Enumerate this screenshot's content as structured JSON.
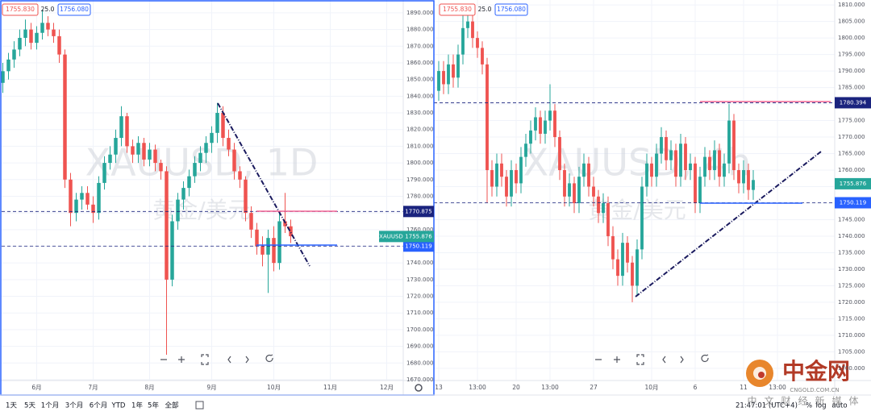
{
  "chart_data": [
    {
      "type": "candlestick",
      "watermark": "XAUUSD, 1D",
      "watermark_sub": "黄金/美元",
      "up_color": "#26a69a",
      "down_color": "#ef5350",
      "grid": true,
      "ylim": [
        1669.5,
        1897.7
      ],
      "yticks": [
        {
          "value": 1890,
          "label": "1890.000"
        },
        {
          "value": 1880,
          "label": "1880.000"
        },
        {
          "value": 1870,
          "label": "1870.000"
        },
        {
          "value": 1860,
          "label": "1860.000"
        },
        {
          "value": 1850,
          "label": "1850.000"
        },
        {
          "value": 1840,
          "label": "1840.000"
        },
        {
          "value": 1830,
          "label": "1830.000"
        },
        {
          "value": 1820,
          "label": "1820.000"
        },
        {
          "value": 1810,
          "label": "1810.000"
        },
        {
          "value": 1800,
          "label": "1800.000"
        },
        {
          "value": 1790,
          "label": "1790.000"
        },
        {
          "value": 1780,
          "label": "1780.000"
        },
        {
          "value": 1770,
          "label": "1770.000"
        },
        {
          "value": 1760,
          "label": "1760.000"
        },
        {
          "value": 1750,
          "label": "1750.000"
        },
        {
          "value": 1740,
          "label": "1740.000"
        },
        {
          "value": 1730,
          "label": "1730.000"
        },
        {
          "value": 1720,
          "label": "1720.000"
        },
        {
          "value": 1710,
          "label": "1710.000"
        },
        {
          "value": 1700,
          "label": "1700.000"
        },
        {
          "value": 1690,
          "label": "1690.000"
        },
        {
          "value": 1680,
          "label": "1680.000"
        },
        {
          "value": 1670,
          "label": "1670.000"
        }
      ],
      "categories": [
        null,
        null,
        null,
        null,
        null,
        null,
        "6月",
        null,
        null,
        null,
        null,
        null,
        null,
        null,
        null,
        null,
        "7月",
        null,
        null,
        null,
        null,
        null,
        null,
        null,
        null,
        null,
        "8月",
        null,
        null,
        null,
        null,
        null,
        null,
        null,
        null,
        null,
        null,
        "9月",
        null,
        null,
        null,
        null,
        null,
        null,
        null,
        null,
        null,
        null,
        "10月",
        null,
        null,
        null,
        null,
        null,
        null,
        null,
        null,
        null,
        "11月",
        null,
        null,
        null,
        null,
        null,
        null,
        null,
        null,
        null,
        "12月",
        null,
        null
      ],
      "open": [
        1848,
        1855,
        1862,
        1868,
        1875,
        1880,
        1872,
        1878,
        1884,
        1880,
        1876,
        1865,
        1790,
        1770,
        1778,
        1782,
        1775,
        1770,
        1788,
        1800,
        1805,
        1815,
        1828,
        1810,
        1805,
        1812,
        1802,
        1808,
        1800,
        1795,
        1730,
        1765,
        1778,
        1785,
        1792,
        1800,
        1806,
        1812,
        1818,
        1830,
        1815,
        1808,
        1795,
        1790,
        1770,
        1760,
        1750,
        1745,
        1755,
        1740,
        1765,
        1762,
        null,
        null,
        null,
        null,
        null,
        null,
        null,
        null,
        null,
        null,
        null,
        null,
        null,
        null,
        null,
        null,
        null,
        null,
        null
      ],
      "high": [
        1860,
        1866,
        1873,
        1880,
        1886,
        1884,
        1882,
        1892,
        1888,
        1884,
        1880,
        1868,
        1794,
        1782,
        1786,
        1786,
        1780,
        1792,
        1804,
        1810,
        1820,
        1834,
        1830,
        1814,
        1816,
        1815,
        1812,
        1811,
        1802,
        1798,
        1769,
        1782,
        1789,
        1796,
        1804,
        1810,
        1816,
        1822,
        1836,
        1834,
        1820,
        1812,
        1798,
        1792,
        1774,
        1764,
        1756,
        1760,
        1762,
        1770,
        1782,
        1766,
        null,
        null,
        null,
        null,
        null,
        null,
        null,
        null,
        null,
        null,
        null,
        null,
        null,
        null,
        null,
        null,
        null,
        null,
        null
      ],
      "low": [
        1842,
        1850,
        1857,
        1864,
        1870,
        1868,
        1868,
        1874,
        1876,
        1872,
        1860,
        1785,
        1762,
        1765,
        1772,
        1772,
        1764,
        1766,
        1784,
        1796,
        1800,
        1810,
        1806,
        1800,
        1800,
        1798,
        1798,
        1795,
        1790,
        1685,
        1726,
        1760,
        1772,
        1780,
        1788,
        1795,
        1800,
        1806,
        1812,
        1810,
        1804,
        1790,
        1785,
        1765,
        1755,
        1745,
        1738,
        1722,
        1735,
        1736,
        1758,
        1752,
        null,
        null,
        null,
        null,
        null,
        null,
        null,
        null,
        null,
        null,
        null,
        null,
        null,
        null,
        null,
        null,
        null,
        null,
        null
      ],
      "close": [
        1855,
        1862,
        1868,
        1875,
        1880,
        1872,
        1878,
        1884,
        1880,
        1876,
        1865,
        1790,
        1770,
        1778,
        1782,
        1775,
        1770,
        1788,
        1800,
        1805,
        1815,
        1828,
        1810,
        1805,
        1812,
        1802,
        1808,
        1800,
        1795,
        1730,
        1765,
        1778,
        1785,
        1792,
        1800,
        1806,
        1812,
        1818,
        1830,
        1815,
        1808,
        1795,
        1790,
        1770,
        1760,
        1750,
        1745,
        1755,
        1740,
        1765,
        1762,
        1756,
        null,
        null,
        null,
        null,
        null,
        null,
        null,
        null,
        null,
        null,
        null,
        null,
        null,
        null,
        null,
        null,
        null,
        null,
        null
      ],
      "price_lines": [
        {
          "value": 1770.875,
          "color": "#1a237e",
          "tag_color": "#1a237e"
        },
        {
          "value": 1750.119,
          "color": "#1a237e",
          "tag_color": "#2962ff"
        }
      ],
      "last_price": {
        "label": "XAUUSD",
        "value": 1755.876,
        "color": "#26a69a"
      },
      "quote": {
        "bid": "1755.830",
        "spread": "25.0",
        "ask": "1756.080"
      }
    },
    {
      "type": "candlestick",
      "watermark": "XAUUSD, 4h",
      "watermark_sub": "黄金/美元",
      "up_color": "#26a69a",
      "down_color": "#ef5350",
      "grid": true,
      "ylim": [
        1696.3,
        1811.5
      ],
      "yticks": [
        {
          "value": 1810,
          "label": "1810.000"
        },
        {
          "value": 1805,
          "label": "1805.000"
        },
        {
          "value": 1800,
          "label": "1800.000"
        },
        {
          "value": 1795,
          "label": "1795.000"
        },
        {
          "value": 1790,
          "label": "1790.000"
        },
        {
          "value": 1785,
          "label": "1785.000"
        },
        {
          "value": 1780,
          "label": "1780.000"
        },
        {
          "value": 1775,
          "label": "1775.000"
        },
        {
          "value": 1770,
          "label": "1770.000"
        },
        {
          "value": 1765,
          "label": "1765.000"
        },
        {
          "value": 1760,
          "label": "1760.000"
        },
        {
          "value": 1755,
          "label": "1755.000"
        },
        {
          "value": 1750,
          "label": "1750.000"
        },
        {
          "value": 1745,
          "label": "1745.000"
        },
        {
          "value": 1740,
          "label": "1740.000"
        },
        {
          "value": 1735,
          "label": "1735.000"
        },
        {
          "value": 1730,
          "label": "1730.000"
        },
        {
          "value": 1725,
          "label": "1725.000"
        },
        {
          "value": 1720,
          "label": "1720.000"
        },
        {
          "value": 1715,
          "label": "1715.000"
        },
        {
          "value": 1710,
          "label": "1710.000"
        },
        {
          "value": 1705,
          "label": "1705.000"
        },
        {
          "value": 1700,
          "label": "1700.000"
        }
      ],
      "categories": [
        "13",
        null,
        null,
        null,
        null,
        null,
        null,
        null,
        "13:00",
        null,
        null,
        null,
        null,
        null,
        null,
        null,
        "20",
        null,
        null,
        null,
        null,
        null,
        null,
        "13:00",
        null,
        null,
        null,
        null,
        null,
        null,
        null,
        null,
        "27",
        null,
        null,
        null,
        null,
        null,
        null,
        null,
        null,
        null,
        null,
        null,
        "10月",
        null,
        null,
        null,
        null,
        null,
        null,
        null,
        null,
        "6",
        null,
        null,
        null,
        null,
        null,
        null,
        null,
        null,
        null,
        "11",
        null,
        null,
        null,
        null,
        null,
        null,
        "13:00",
        null,
        null,
        null,
        null,
        null,
        null,
        null,
        null,
        null,
        null,
        null
      ],
      "open": [
        1784,
        1790,
        1786,
        1792,
        1788,
        1795,
        1803,
        1805,
        1800,
        1797,
        1792,
        1760,
        1755,
        1762,
        1758,
        1752,
        1760,
        1756,
        1764,
        1768,
        1772,
        1776,
        1771,
        1775,
        1778,
        1770,
        1760,
        1752,
        1756,
        1750,
        1758,
        1762,
        1755,
        1752,
        1747,
        1750,
        1740,
        1733,
        1728,
        1738,
        1732,
        1725,
        1736,
        1755,
        1762,
        1758,
        1765,
        1770,
        1763,
        1766,
        1758,
        1768,
        1760,
        1762,
        1750,
        1758,
        1764,
        1760,
        1766,
        1758,
        1762,
        1775,
        1760,
        1756,
        1760,
        1754,
        null,
        null,
        null,
        null,
        null,
        null,
        null,
        null,
        null,
        null,
        null,
        null,
        null,
        null,
        null,
        null
      ],
      "high": [
        1793,
        1793,
        1795,
        1795,
        1798,
        1808,
        1808,
        1807,
        1802,
        1799,
        1794,
        1763,
        1765,
        1765,
        1760,
        1763,
        1762,
        1767,
        1771,
        1775,
        1779,
        1778,
        1778,
        1786,
        1780,
        1772,
        1762,
        1759,
        1758,
        1761,
        1765,
        1764,
        1758,
        1754,
        1753,
        1752,
        1743,
        1736,
        1741,
        1740,
        1734,
        1739,
        1758,
        1765,
        1764,
        1768,
        1773,
        1772,
        1769,
        1768,
        1771,
        1770,
        1765,
        1764,
        1761,
        1767,
        1766,
        1769,
        1768,
        1765,
        1780,
        1777,
        1762,
        1763,
        1762,
        1760,
        null,
        null,
        null,
        null,
        null,
        null,
        null,
        null,
        null,
        null,
        null,
        null,
        null,
        null,
        null,
        null
      ],
      "low": [
        1781,
        1783,
        1783,
        1785,
        1785,
        1792,
        1800,
        1797,
        1794,
        1789,
        1750,
        1752,
        1752,
        1755,
        1749,
        1749,
        1753,
        1753,
        1761,
        1765,
        1769,
        1768,
        1768,
        1772,
        1767,
        1757,
        1749,
        1749,
        1747,
        1747,
        1755,
        1752,
        1749,
        1744,
        1744,
        1737,
        1730,
        1725,
        1725,
        1729,
        1720,
        1722,
        1733,
        1752,
        1755,
        1755,
        1762,
        1760,
        1760,
        1755,
        1755,
        1757,
        1757,
        1747,
        1747,
        1755,
        1757,
        1757,
        1755,
        1755,
        1759,
        1757,
        1753,
        1753,
        1751,
        1751,
        null,
        null,
        null,
        null,
        null,
        null,
        null,
        null,
        null,
        null,
        null,
        null,
        null,
        null,
        null,
        null
      ],
      "close": [
        1790,
        1786,
        1792,
        1788,
        1795,
        1803,
        1805,
        1800,
        1797,
        1792,
        1760,
        1755,
        1762,
        1758,
        1752,
        1760,
        1756,
        1764,
        1768,
        1772,
        1776,
        1771,
        1775,
        1778,
        1770,
        1760,
        1752,
        1756,
        1750,
        1758,
        1762,
        1755,
        1752,
        1747,
        1750,
        1740,
        1733,
        1728,
        1738,
        1732,
        1725,
        1736,
        1755,
        1762,
        1758,
        1765,
        1770,
        1763,
        1766,
        1758,
        1768,
        1760,
        1762,
        1750,
        1758,
        1764,
        1760,
        1766,
        1758,
        1762,
        1775,
        1760,
        1756,
        1760,
        1754,
        1757,
        null,
        null,
        null,
        null,
        null,
        null,
        null,
        null,
        null,
        null,
        null,
        null,
        null,
        null,
        null,
        null
      ],
      "price_lines": [
        {
          "value": 1780.394,
          "color": "#1a237e",
          "tag_color": "#1a237e"
        },
        {
          "value": 1750.119,
          "color": "#1a237e",
          "tag_color": "#2962ff"
        }
      ],
      "last_price": {
        "value": 1755.876,
        "color": "#26a69a"
      },
      "quote": {
        "bid": "1755.830",
        "spread": "25.0",
        "ask": "1756.080"
      }
    }
  ],
  "toolbar": {
    "items": [
      "1天",
      "5天",
      "1个月",
      "3个月",
      "6个月",
      "YTD",
      "1年",
      "5年",
      "全部"
    ],
    "clock": "21:47:01 (UTC+4)",
    "options": [
      "%",
      "log",
      "auto"
    ]
  },
  "logo": {
    "name": "中金网",
    "site": "CNGOLD.COM.CN",
    "slogan": "中文财经新媒体"
  }
}
